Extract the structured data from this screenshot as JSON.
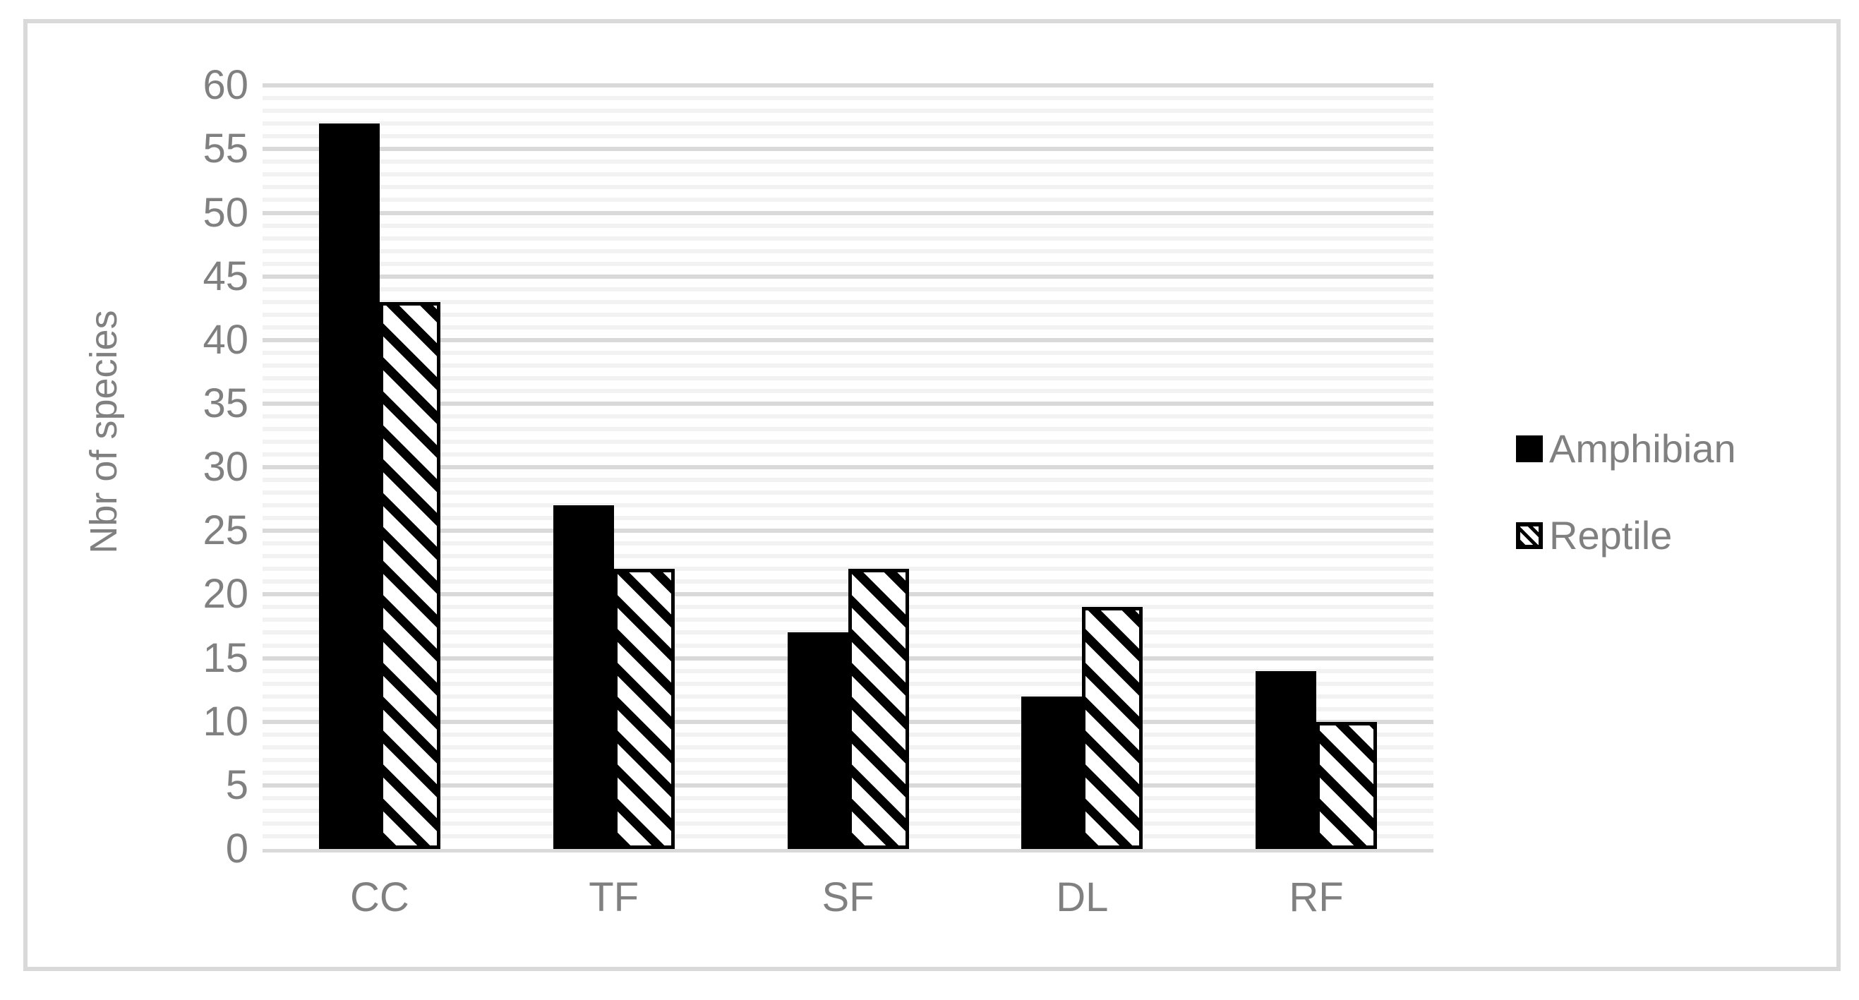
{
  "figure": {
    "background": "#ffffff",
    "frame_color": "#d9d9d9"
  },
  "colors": {
    "text_gray": "#808080",
    "major_grid": "#d9d9d9",
    "minor_grid": "#f2f2f2",
    "bar_black": "#000000"
  },
  "chart_data": {
    "type": "bar",
    "title": "",
    "xlabel": "",
    "ylabel": "Nbr of species",
    "categories": [
      "CC",
      "TF",
      "SF",
      "DL",
      "RF"
    ],
    "series": [
      {
        "name": "Amphibian",
        "style": "solid-black",
        "values": [
          57,
          27,
          17,
          12,
          14
        ]
      },
      {
        "name": "Reptile",
        "style": "diagonal-hatch",
        "values": [
          43,
          22,
          22,
          19,
          10
        ]
      }
    ],
    "ylim": [
      0,
      60
    ],
    "yticks": [
      0,
      5,
      10,
      15,
      20,
      25,
      30,
      35,
      40,
      45,
      50,
      55,
      60
    ],
    "grid": {
      "minor_step": 1,
      "major_step": 5,
      "minor_color": "#f2f2f2",
      "major_color": "#d9d9d9"
    },
    "legend_position": "right"
  },
  "legend": {
    "items": [
      {
        "label": "Amphibian",
        "swatch": "solid-black-square"
      },
      {
        "label": "Reptile",
        "swatch": "hatched-square"
      }
    ]
  }
}
